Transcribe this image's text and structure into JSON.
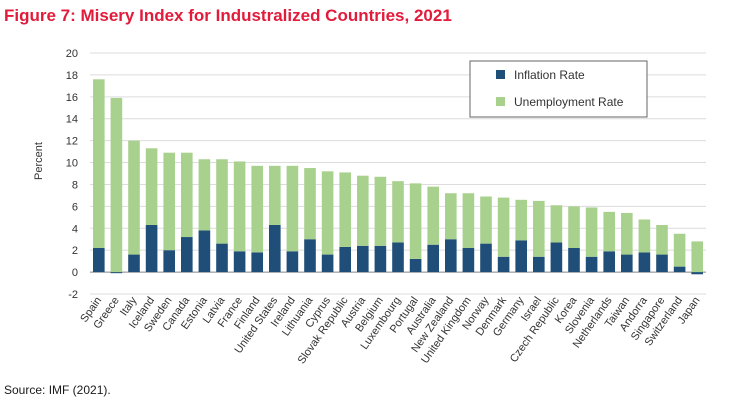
{
  "title": "Figure 7: Misery Index for Industralized Countries, 2021",
  "source": "Source: IMF (2021).",
  "colors": {
    "inflation": "#1f4e79",
    "unemployment": "#a9d18e",
    "title": "#e31b3b"
  },
  "chart_data": {
    "type": "bar",
    "stacked": true,
    "title": "Figure 7: Misery Index for Industralized Countries, 2021",
    "xlabel": "",
    "ylabel": "Percent",
    "ylim": [
      -2,
      20
    ],
    "yticks": [
      "20",
      "18",
      "16",
      "14",
      "12",
      "10",
      "8",
      "6",
      "4",
      "2",
      "0",
      "-2"
    ],
    "legend_position": "top-right",
    "categories": [
      "Spain",
      "Greece",
      "Italy",
      "Iceland",
      "Sweden",
      "Canada",
      "Estonia",
      "Latvia",
      "France",
      "Finland",
      "United States",
      "Ireland",
      "Lithuania",
      "Cyprus",
      "Slovak Republic",
      "Austria",
      "Belgium",
      "Luxembourg",
      "Portugal",
      "Australia",
      "New Zealand",
      "United Kingdom",
      "Norway",
      "Denmark",
      "Germany",
      "Israel",
      "Czech Republic",
      "Korea",
      "Slovenia",
      "Netherlands",
      "Taiwan",
      "Andorra",
      "Singapore",
      "Switzerland",
      "Japan"
    ],
    "series": [
      {
        "name": "Inflation Rate",
        "values": [
          2.2,
          -0.1,
          1.6,
          4.3,
          2.0,
          3.2,
          3.8,
          2.6,
          1.9,
          1.8,
          4.3,
          1.9,
          3.0,
          1.6,
          2.3,
          2.4,
          2.4,
          2.7,
          1.2,
          2.5,
          3.0,
          2.2,
          2.6,
          1.4,
          2.9,
          1.4,
          2.7,
          2.2,
          1.4,
          1.9,
          1.6,
          1.8,
          1.6,
          0.5,
          -0.2
        ]
      },
      {
        "name": "Unemployment Rate",
        "values": [
          15.4,
          15.9,
          10.4,
          7.0,
          8.9,
          7.7,
          6.5,
          7.7,
          8.2,
          7.9,
          5.4,
          7.8,
          6.5,
          7.6,
          6.8,
          6.4,
          6.3,
          5.6,
          6.9,
          5.3,
          4.2,
          5.0,
          4.3,
          5.4,
          3.7,
          5.1,
          3.4,
          3.8,
          4.5,
          3.6,
          3.8,
          3.0,
          2.7,
          3.0,
          2.8
        ]
      }
    ]
  }
}
